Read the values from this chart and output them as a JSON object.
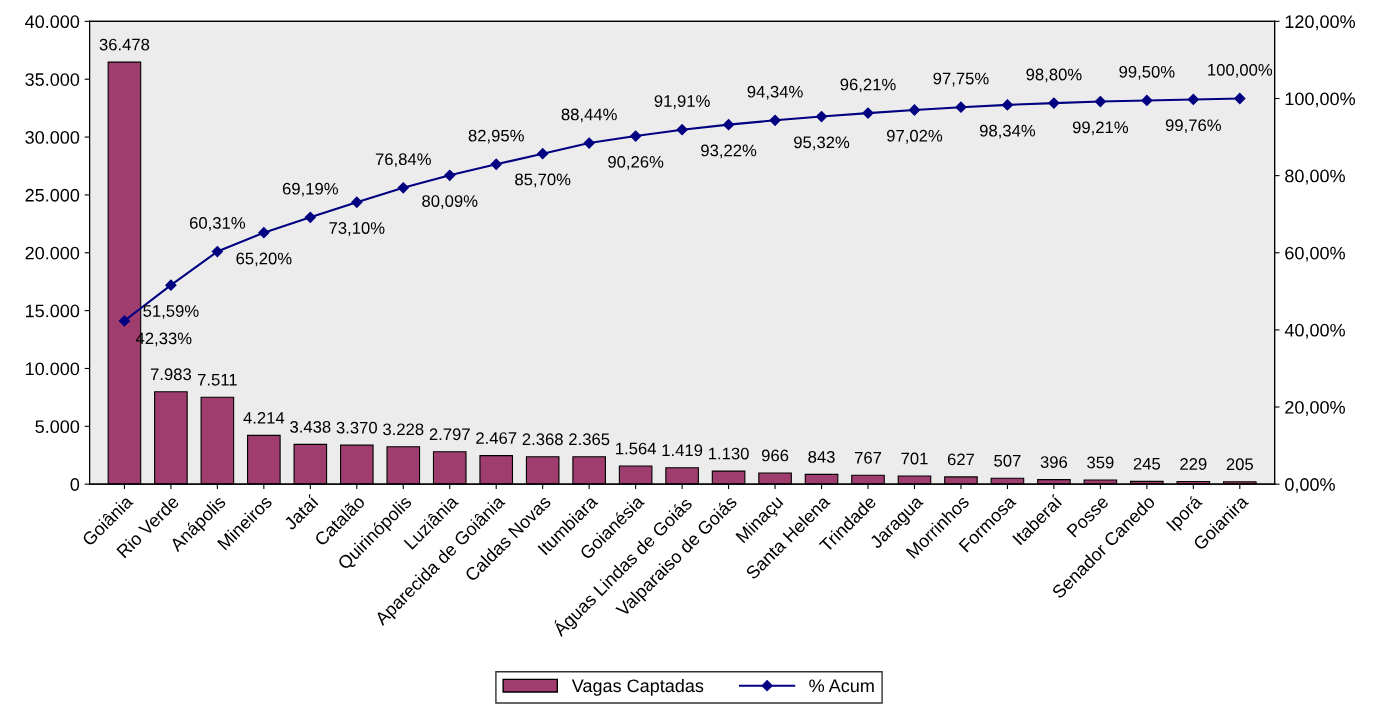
{
  "chart_data": {
    "type": "bar",
    "categories": [
      "Goiânia",
      "Rio Verde",
      "Anápolis",
      "Mineiros",
      "Jataí",
      "Catalão",
      "Quirinópolis",
      "Luziânia",
      "Aparecida de Goiânia",
      "Caldas Novas",
      "Itumbiara",
      "Goianésia",
      "Águas Lindas de Goiás",
      "Valparaiso de Goiás",
      "Minaçu",
      "Santa Helena",
      "Trindade",
      "Jaragua",
      "Morrinhos",
      "Formosa",
      "Itaberaí",
      "Posse",
      "Senador Canedo",
      "Iporá",
      "Goianira"
    ],
    "series": [
      {
        "name": "Vagas Captadas",
        "color": "#9e3d6e",
        "values": [
          36478,
          7983,
          7511,
          4214,
          3438,
          3370,
          3228,
          2797,
          2467,
          2368,
          2365,
          1564,
          1419,
          1130,
          966,
          843,
          767,
          701,
          627,
          507,
          396,
          359,
          245,
          229,
          205
        ],
        "value_labels": [
          "36.478",
          "7.983",
          "7.511",
          "4.214",
          "3.438",
          "3.370",
          "3.228",
          "2.797",
          "2.467",
          "2.368",
          "2.365",
          "1.564",
          "1.419",
          "1.130",
          "966",
          "843",
          "767",
          "701",
          "627",
          "507",
          "396",
          "359",
          "245",
          "229",
          "205"
        ]
      },
      {
        "name": "% Acum",
        "type": "line",
        "axis": "y2",
        "color": "#000080",
        "marker": "diamond",
        "values": [
          42.33,
          51.59,
          60.31,
          65.2,
          69.19,
          73.1,
          76.84,
          80.09,
          82.95,
          85.7,
          88.44,
          90.26,
          91.91,
          93.22,
          94.34,
          95.32,
          96.21,
          97.02,
          97.75,
          98.34,
          98.8,
          99.21,
          99.5,
          99.76,
          100.0
        ],
        "value_labels": [
          "42,33%",
          "51,59%",
          "60,31%",
          "65,20%",
          "69,19%",
          "73,10%",
          "76,84%",
          "80,09%",
          "82,95%",
          "85,70%",
          "88,44%",
          "90,26%",
          "91,91%",
          "93,22%",
          "94,34%",
          "95,32%",
          "96,21%",
          "97,02%",
          "97,75%",
          "98,34%",
          "98,80%",
          "99,21%",
          "99,50%",
          "99,76%",
          "100,00%"
        ]
      }
    ],
    "ylim": [
      0,
      40000
    ],
    "yticks": [
      {
        "value": 0,
        "label": "0"
      },
      {
        "value": 5000,
        "label": "5.000"
      },
      {
        "value": 10000,
        "label": "10.000"
      },
      {
        "value": 15000,
        "label": "15.000"
      },
      {
        "value": 20000,
        "label": "20.000"
      },
      {
        "value": 25000,
        "label": "25.000"
      },
      {
        "value": 30000,
        "label": "30.000"
      },
      {
        "value": 35000,
        "label": "35.000"
      },
      {
        "value": 40000,
        "label": "40.000"
      }
    ],
    "y2lim": [
      0,
      120
    ],
    "y2ticks": [
      {
        "value": 0,
        "label": "0,00%"
      },
      {
        "value": 20,
        "label": "20,00%"
      },
      {
        "value": 40,
        "label": "40,00%"
      },
      {
        "value": 60,
        "label": "60,00%"
      },
      {
        "value": 80,
        "label": "80,00%"
      },
      {
        "value": 100,
        "label": "100,00%"
      },
      {
        "value": 120,
        "label": "120,00%"
      }
    ],
    "grid": false,
    "legend": "bottom"
  }
}
